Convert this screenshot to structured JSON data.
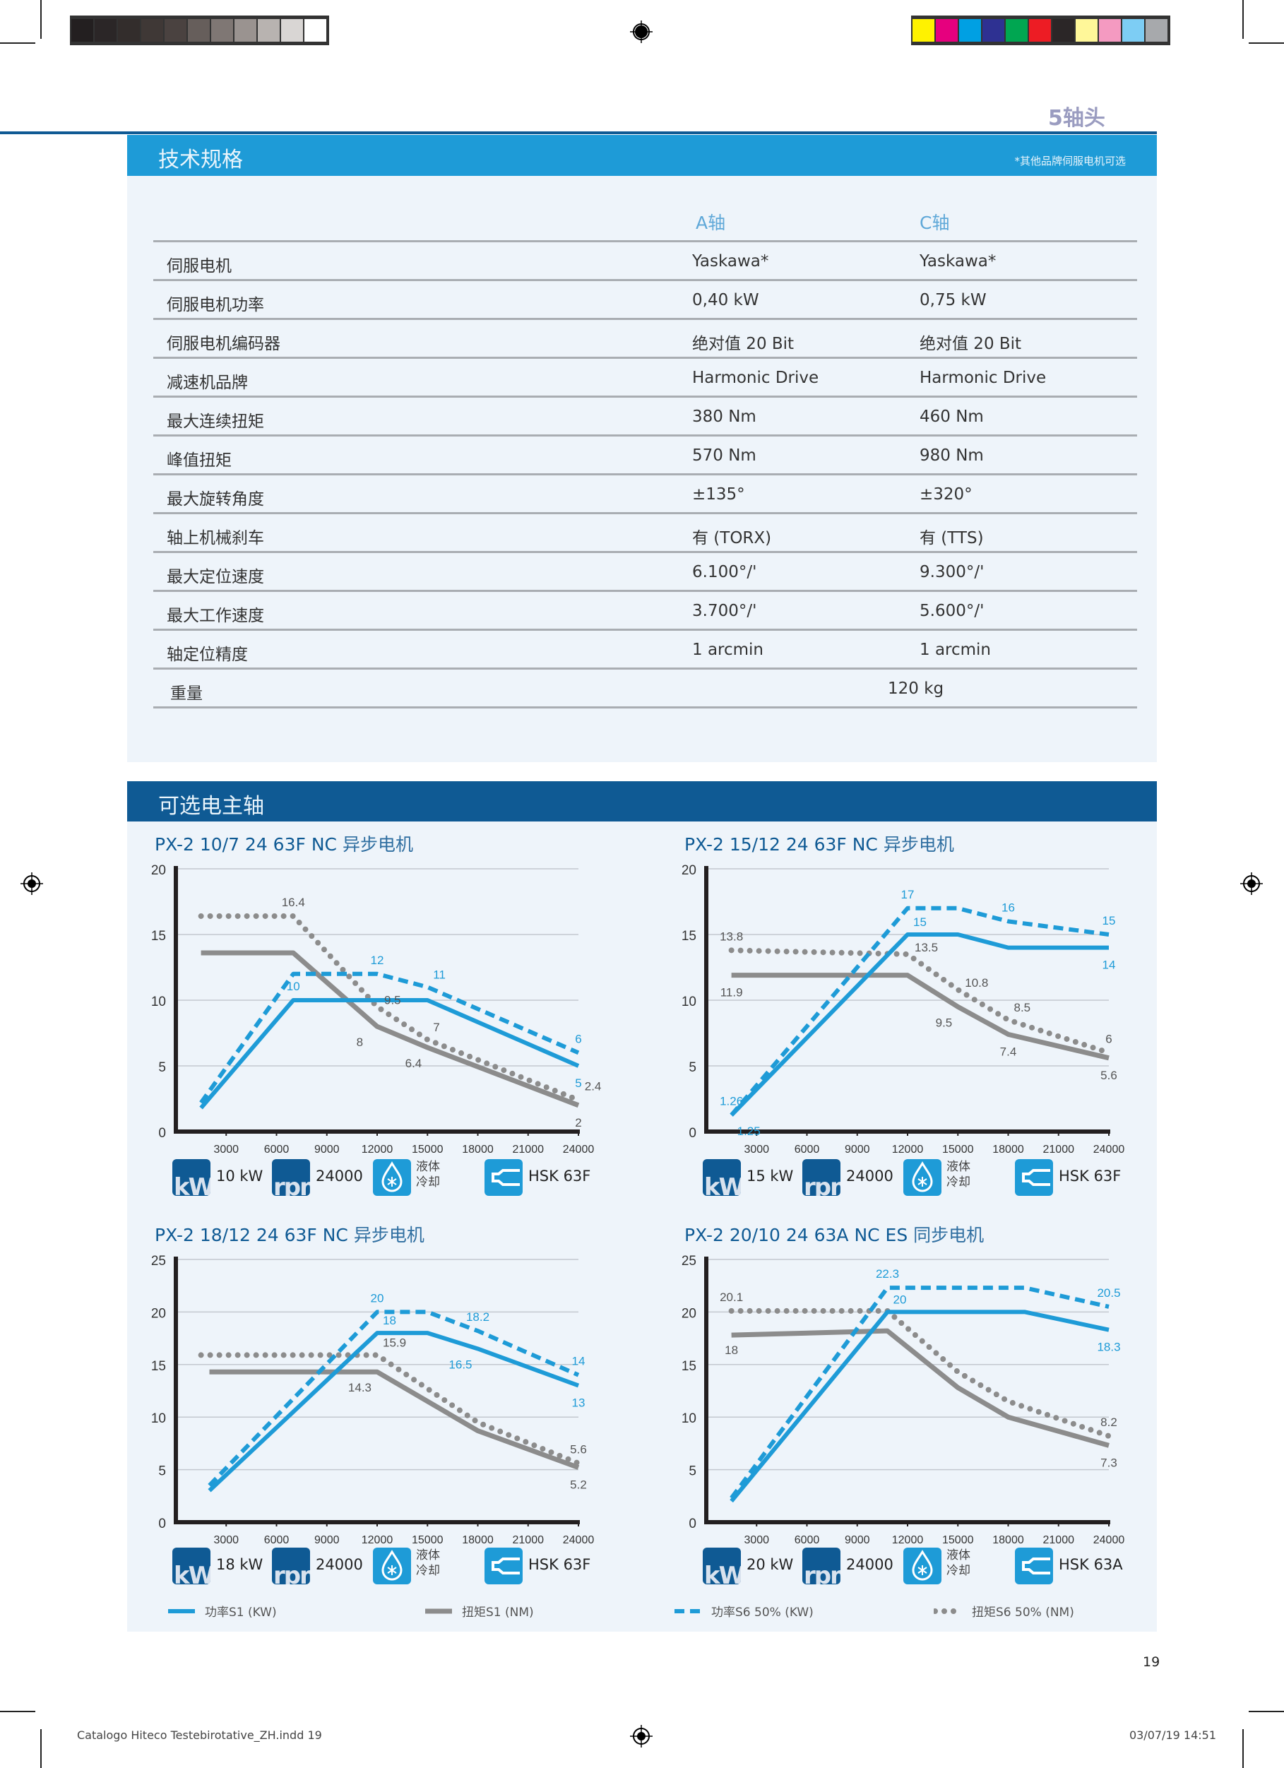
{
  "print_marks": {
    "gray_swatches": [
      "#231f20",
      "#2b2627",
      "#332d2c",
      "#3f3836",
      "#4a4240",
      "#665e5b",
      "#7f7774",
      "#9a9390",
      "#b8b3b0",
      "#d9d6d4",
      "#ffffff"
    ],
    "color_swatches": [
      "#fff200",
      "#e6007e",
      "#00a0e3",
      "#2e3192",
      "#00a651",
      "#ed1c24",
      "#2b2627",
      "#fff799",
      "#f49ac1",
      "#7dcdf4",
      "#a7a9ac"
    ]
  },
  "header": {
    "topic": "5轴头"
  },
  "specs": {
    "title": "技术规格",
    "note": "*其他品牌伺服电机可选",
    "columns": [
      "A轴",
      "C轴"
    ],
    "rows": [
      {
        "label": "伺服电机",
        "a": "Yaskawa*",
        "c": "Yaskawa*"
      },
      {
        "label": "伺服电机功率",
        "a": "0,40 kW",
        "c": "0,75 kW"
      },
      {
        "label": "伺服电机编码器",
        "a": "绝对值 20 Bit",
        "c": "绝对值 20 Bit"
      },
      {
        "label": "减速机品牌",
        "a": "Harmonic Drive",
        "c": "Harmonic Drive"
      },
      {
        "label": "最大连续扭矩",
        "a": "380 Nm",
        "c": "460 Nm"
      },
      {
        "label": "峰值扭矩",
        "a": "570 Nm",
        "c": "980 Nm"
      },
      {
        "label": "最大旋转角度",
        "a": "±135°",
        "c": "±320°"
      },
      {
        "label": "轴上机械刹车",
        "a": "有 (TORX)",
        "c": "有 (TTS)"
      },
      {
        "label": "最大定位速度",
        "a": "6.100°/'",
        "c": "9.300°/'"
      },
      {
        "label": "最大工作速度",
        "a": "3.700°/'",
        "c": "5.600°/'"
      },
      {
        "label": "轴定位精度",
        "a": "1 arcmin",
        "c": "1 arcmin"
      }
    ],
    "weight": {
      "label": "重量",
      "value": "120 kg"
    }
  },
  "spindles": {
    "title": "可选电主轴"
  },
  "colors": {
    "power": "#1e9bd7",
    "torque": "#8c8c8c",
    "dark_blue": "#0f5a94",
    "panel": "#eef4fa"
  },
  "legend": [
    {
      "label": "功率S1 (KW)",
      "series": "power_s1"
    },
    {
      "label": "扭矩S1 (NM)",
      "series": "torque_s1"
    },
    {
      "label": "功率S6 50% (KW)",
      "series": "power_s6"
    },
    {
      "label": "扭矩S6 50% (NM)",
      "series": "torque_s6"
    }
  ],
  "chart_data": [
    {
      "type": "line",
      "title_model": "PX-2 10/7 24 63F NC",
      "title_type": "异步电机",
      "xlim": [
        0,
        24000
      ],
      "ylim": [
        0,
        20
      ],
      "xticks": [
        3000,
        6000,
        9000,
        12000,
        15000,
        18000,
        21000,
        24000
      ],
      "yticks": [
        0,
        5,
        10,
        15,
        20
      ],
      "grid": true,
      "series": {
        "power_s1": [
          [
            1500,
            1.8
          ],
          [
            7000,
            10
          ],
          [
            15000,
            10
          ],
          [
            24000,
            5
          ]
        ],
        "power_s6": [
          [
            1500,
            2.2
          ],
          [
            7000,
            12
          ],
          [
            12000,
            12
          ],
          [
            15000,
            11
          ],
          [
            24000,
            6
          ]
        ],
        "torque_s1": [
          [
            1500,
            13.6
          ],
          [
            7000,
            13.6
          ],
          [
            12000,
            8
          ],
          [
            15000,
            6.4
          ],
          [
            24000,
            2
          ]
        ],
        "torque_s6": [
          [
            1500,
            16.4
          ],
          [
            7000,
            16.4
          ],
          [
            12000,
            9.5
          ],
          [
            15000,
            7
          ],
          [
            24000,
            2.4
          ]
        ]
      },
      "labels": [
        {
          "text": "16.4",
          "x": 7000,
          "y": 16.4,
          "series": "torque",
          "pos": "above"
        },
        {
          "text": "12",
          "x": 12000,
          "y": 12,
          "series": "power",
          "pos": "above"
        },
        {
          "text": "11",
          "x": 15000,
          "y": 11,
          "series": "power",
          "pos": "above-right"
        },
        {
          "text": "10",
          "x": 7000,
          "y": 10,
          "series": "power",
          "pos": "above"
        },
        {
          "text": "9.5",
          "x": 12000,
          "y": 9.5,
          "series": "torque",
          "pos": "right"
        },
        {
          "text": "8",
          "x": 11500,
          "y": 8,
          "series": "torque",
          "pos": "below-left"
        },
        {
          "text": "7",
          "x": 15000,
          "y": 7,
          "series": "torque",
          "pos": "above-right"
        },
        {
          "text": "6.4",
          "x": 15000,
          "y": 6.4,
          "series": "torque",
          "pos": "below-left"
        },
        {
          "text": "6",
          "x": 24000,
          "y": 6,
          "series": "power",
          "pos": "above"
        },
        {
          "text": "5",
          "x": 24000,
          "y": 5,
          "series": "power",
          "pos": "below"
        },
        {
          "text": "2.4",
          "x": 24000,
          "y": 2.4,
          "series": "torque",
          "pos": "above"
        },
        {
          "text": "2",
          "x": 24000,
          "y": 2,
          "series": "torque",
          "pos": "below"
        }
      ],
      "specs": {
        "power": "10 kW",
        "rpm": "24000",
        "cooling": [
          "液体",
          "冷却"
        ],
        "tool": "HSK 63F"
      }
    },
    {
      "type": "line",
      "title_model": "PX-2 15/12 24 63F NC",
      "title_type": "异步电机",
      "xlim": [
        0,
        24000
      ],
      "ylim": [
        0,
        20
      ],
      "xticks": [
        3000,
        6000,
        9000,
        12000,
        15000,
        18000,
        21000,
        24000
      ],
      "yticks": [
        0,
        5,
        10,
        15,
        20
      ],
      "grid": true,
      "series": {
        "power_s1": [
          [
            1500,
            1.25
          ],
          [
            12000,
            15
          ],
          [
            15000,
            15
          ],
          [
            18000,
            14
          ],
          [
            24000,
            14
          ]
        ],
        "power_s6": [
          [
            1500,
            1.26
          ],
          [
            12000,
            17
          ],
          [
            15000,
            17
          ],
          [
            18000,
            16
          ],
          [
            24000,
            15
          ]
        ],
        "torque_s1": [
          [
            1500,
            11.9
          ],
          [
            12000,
            11.9
          ],
          [
            15000,
            9.5
          ],
          [
            18000,
            7.4
          ],
          [
            24000,
            5.6
          ]
        ],
        "torque_s6": [
          [
            1500,
            13.8
          ],
          [
            12000,
            13.5
          ],
          [
            15000,
            10.8
          ],
          [
            18000,
            8.5
          ],
          [
            24000,
            6
          ]
        ]
      },
      "labels": [
        {
          "text": "17",
          "x": 12000,
          "y": 17,
          "series": "power",
          "pos": "above"
        },
        {
          "text": "15",
          "x": 12000,
          "y": 15,
          "series": "power",
          "pos": "above-right"
        },
        {
          "text": "16",
          "x": 18000,
          "y": 16,
          "series": "power",
          "pos": "above"
        },
        {
          "text": "15",
          "x": 24000,
          "y": 15,
          "series": "power",
          "pos": "above"
        },
        {
          "text": "14",
          "x": 24000,
          "y": 14,
          "series": "power",
          "pos": "below"
        },
        {
          "text": "13.8",
          "x": 1500,
          "y": 13.8,
          "series": "torque",
          "pos": "above"
        },
        {
          "text": "13.5",
          "x": 12000,
          "y": 13.5,
          "series": "torque",
          "pos": "right"
        },
        {
          "text": "11.9",
          "x": 1500,
          "y": 11.9,
          "series": "torque",
          "pos": "below"
        },
        {
          "text": "10.8",
          "x": 15000,
          "y": 10.8,
          "series": "torque",
          "pos": "right"
        },
        {
          "text": "9.5",
          "x": 15000,
          "y": 9.5,
          "series": "torque",
          "pos": "below-left"
        },
        {
          "text": "8.5",
          "x": 18000,
          "y": 8.5,
          "series": "torque",
          "pos": "above-right"
        },
        {
          "text": "7.4",
          "x": 18000,
          "y": 7.4,
          "series": "torque",
          "pos": "below"
        },
        {
          "text": "6",
          "x": 24000,
          "y": 6,
          "series": "torque",
          "pos": "above"
        },
        {
          "text": "5.6",
          "x": 24000,
          "y": 5.6,
          "series": "torque",
          "pos": "below"
        },
        {
          "text": "1.26",
          "x": 1500,
          "y": 1.26,
          "series": "power",
          "pos": "above"
        },
        {
          "text": "1.25",
          "x": 1500,
          "y": 1.25,
          "series": "power",
          "pos": "below-right"
        }
      ],
      "specs": {
        "power": "15 kW",
        "rpm": "24000",
        "cooling": [
          "液体",
          "冷却"
        ],
        "tool": "HSK 63F"
      }
    },
    {
      "type": "line",
      "title_model": "PX-2 18/12 24 63F NC",
      "title_type": "异步电机",
      "xlim": [
        0,
        24000
      ],
      "ylim": [
        0,
        25
      ],
      "xticks": [
        3000,
        6000,
        9000,
        12000,
        15000,
        18000,
        21000,
        24000
      ],
      "yticks": [
        0,
        5,
        10,
        15,
        20,
        25
      ],
      "grid": true,
      "series": {
        "power_s1": [
          [
            2000,
            3
          ],
          [
            12000,
            18
          ],
          [
            15000,
            18
          ],
          [
            18000,
            16.5
          ],
          [
            24000,
            13
          ]
        ],
        "power_s6": [
          [
            2000,
            3.5
          ],
          [
            12000,
            20
          ],
          [
            15000,
            20
          ],
          [
            18000,
            18.2
          ],
          [
            24000,
            14
          ]
        ],
        "torque_s1": [
          [
            2000,
            14.3
          ],
          [
            12000,
            14.3
          ],
          [
            18000,
            8.7
          ],
          [
            24000,
            5.2
          ]
        ],
        "torque_s6": [
          [
            1500,
            15.9
          ],
          [
            12000,
            15.9
          ],
          [
            18000,
            9.5
          ],
          [
            24000,
            5.6
          ]
        ]
      },
      "labels": [
        {
          "text": "20",
          "x": 12000,
          "y": 20,
          "series": "power",
          "pos": "above"
        },
        {
          "text": "18",
          "x": 12000,
          "y": 18,
          "series": "power",
          "pos": "above-right"
        },
        {
          "text": "18.2",
          "x": 18000,
          "y": 18.2,
          "series": "power",
          "pos": "above"
        },
        {
          "text": "16.5",
          "x": 18000,
          "y": 16.5,
          "series": "power",
          "pos": "below-left"
        },
        {
          "text": "14",
          "x": 24000,
          "y": 14,
          "series": "power",
          "pos": "above"
        },
        {
          "text": "13",
          "x": 24000,
          "y": 13,
          "series": "power",
          "pos": "below"
        },
        {
          "text": "15.9",
          "x": 12000,
          "y": 15.9,
          "series": "torque",
          "pos": "above-right"
        },
        {
          "text": "14.3",
          "x": 12000,
          "y": 14.3,
          "series": "torque",
          "pos": "below-left"
        },
        {
          "text": "5.6",
          "x": 24000,
          "y": 5.6,
          "series": "torque",
          "pos": "above"
        },
        {
          "text": "5.2",
          "x": 24000,
          "y": 5.2,
          "series": "torque",
          "pos": "below"
        }
      ],
      "specs": {
        "power": "18 kW",
        "rpm": "24000",
        "cooling": [
          "液体",
          "冷却"
        ],
        "tool": "HSK 63F"
      }
    },
    {
      "type": "line",
      "title_model": "PX-2 20/10 24 63A NC ES",
      "title_type": "同步电机",
      "xlim": [
        0,
        24000
      ],
      "ylim": [
        0,
        25
      ],
      "xticks": [
        3000,
        6000,
        9000,
        12000,
        15000,
        18000,
        21000,
        24000
      ],
      "yticks": [
        0,
        5,
        10,
        15,
        20,
        25
      ],
      "grid": true,
      "series": {
        "power_s1": [
          [
            1500,
            2
          ],
          [
            10800,
            20
          ],
          [
            19000,
            20
          ],
          [
            24000,
            18.3
          ]
        ],
        "power_s6": [
          [
            1500,
            2.3
          ],
          [
            10800,
            22.3
          ],
          [
            19000,
            22.3
          ],
          [
            24000,
            20.5
          ]
        ],
        "torque_s1": [
          [
            1500,
            17.8
          ],
          [
            10800,
            18.2
          ],
          [
            15000,
            12.8
          ],
          [
            18000,
            10
          ],
          [
            24000,
            7.3
          ]
        ],
        "torque_s6": [
          [
            1500,
            20.1
          ],
          [
            10800,
            20.1
          ],
          [
            15000,
            14.3
          ],
          [
            18000,
            11.5
          ],
          [
            24000,
            8.2
          ]
        ]
      },
      "labels": [
        {
          "text": "22.3",
          "x": 10800,
          "y": 22.3,
          "series": "power",
          "pos": "above"
        },
        {
          "text": "20",
          "x": 10800,
          "y": 20,
          "series": "power",
          "pos": "above-right"
        },
        {
          "text": "20.5",
          "x": 24000,
          "y": 20.5,
          "series": "power",
          "pos": "above"
        },
        {
          "text": "18.3",
          "x": 24000,
          "y": 18.3,
          "series": "power",
          "pos": "below"
        },
        {
          "text": "20.1",
          "x": 1500,
          "y": 20.1,
          "series": "torque",
          "pos": "above"
        },
        {
          "text": "18",
          "x": 1500,
          "y": 18,
          "series": "torque",
          "pos": "below"
        },
        {
          "text": "8.2",
          "x": 24000,
          "y": 8.2,
          "series": "torque",
          "pos": "above"
        },
        {
          "text": "7.3",
          "x": 24000,
          "y": 7.3,
          "series": "torque",
          "pos": "below"
        }
      ],
      "specs": {
        "power": "20 kW",
        "rpm": "24000",
        "cooling": [
          "液体",
          "冷却"
        ],
        "tool": "HSK 63A"
      }
    }
  ],
  "icons": {
    "power": "kW",
    "rpm": "rpm",
    "cooling": "droplet-snowflake-icon",
    "tool": "tool-holder-icon"
  },
  "page": {
    "number": "19"
  },
  "footer": {
    "file": "Catalogo Hiteco Testebirotative_ZH.indd   19",
    "timestamp": "03/07/19   14:51"
  }
}
